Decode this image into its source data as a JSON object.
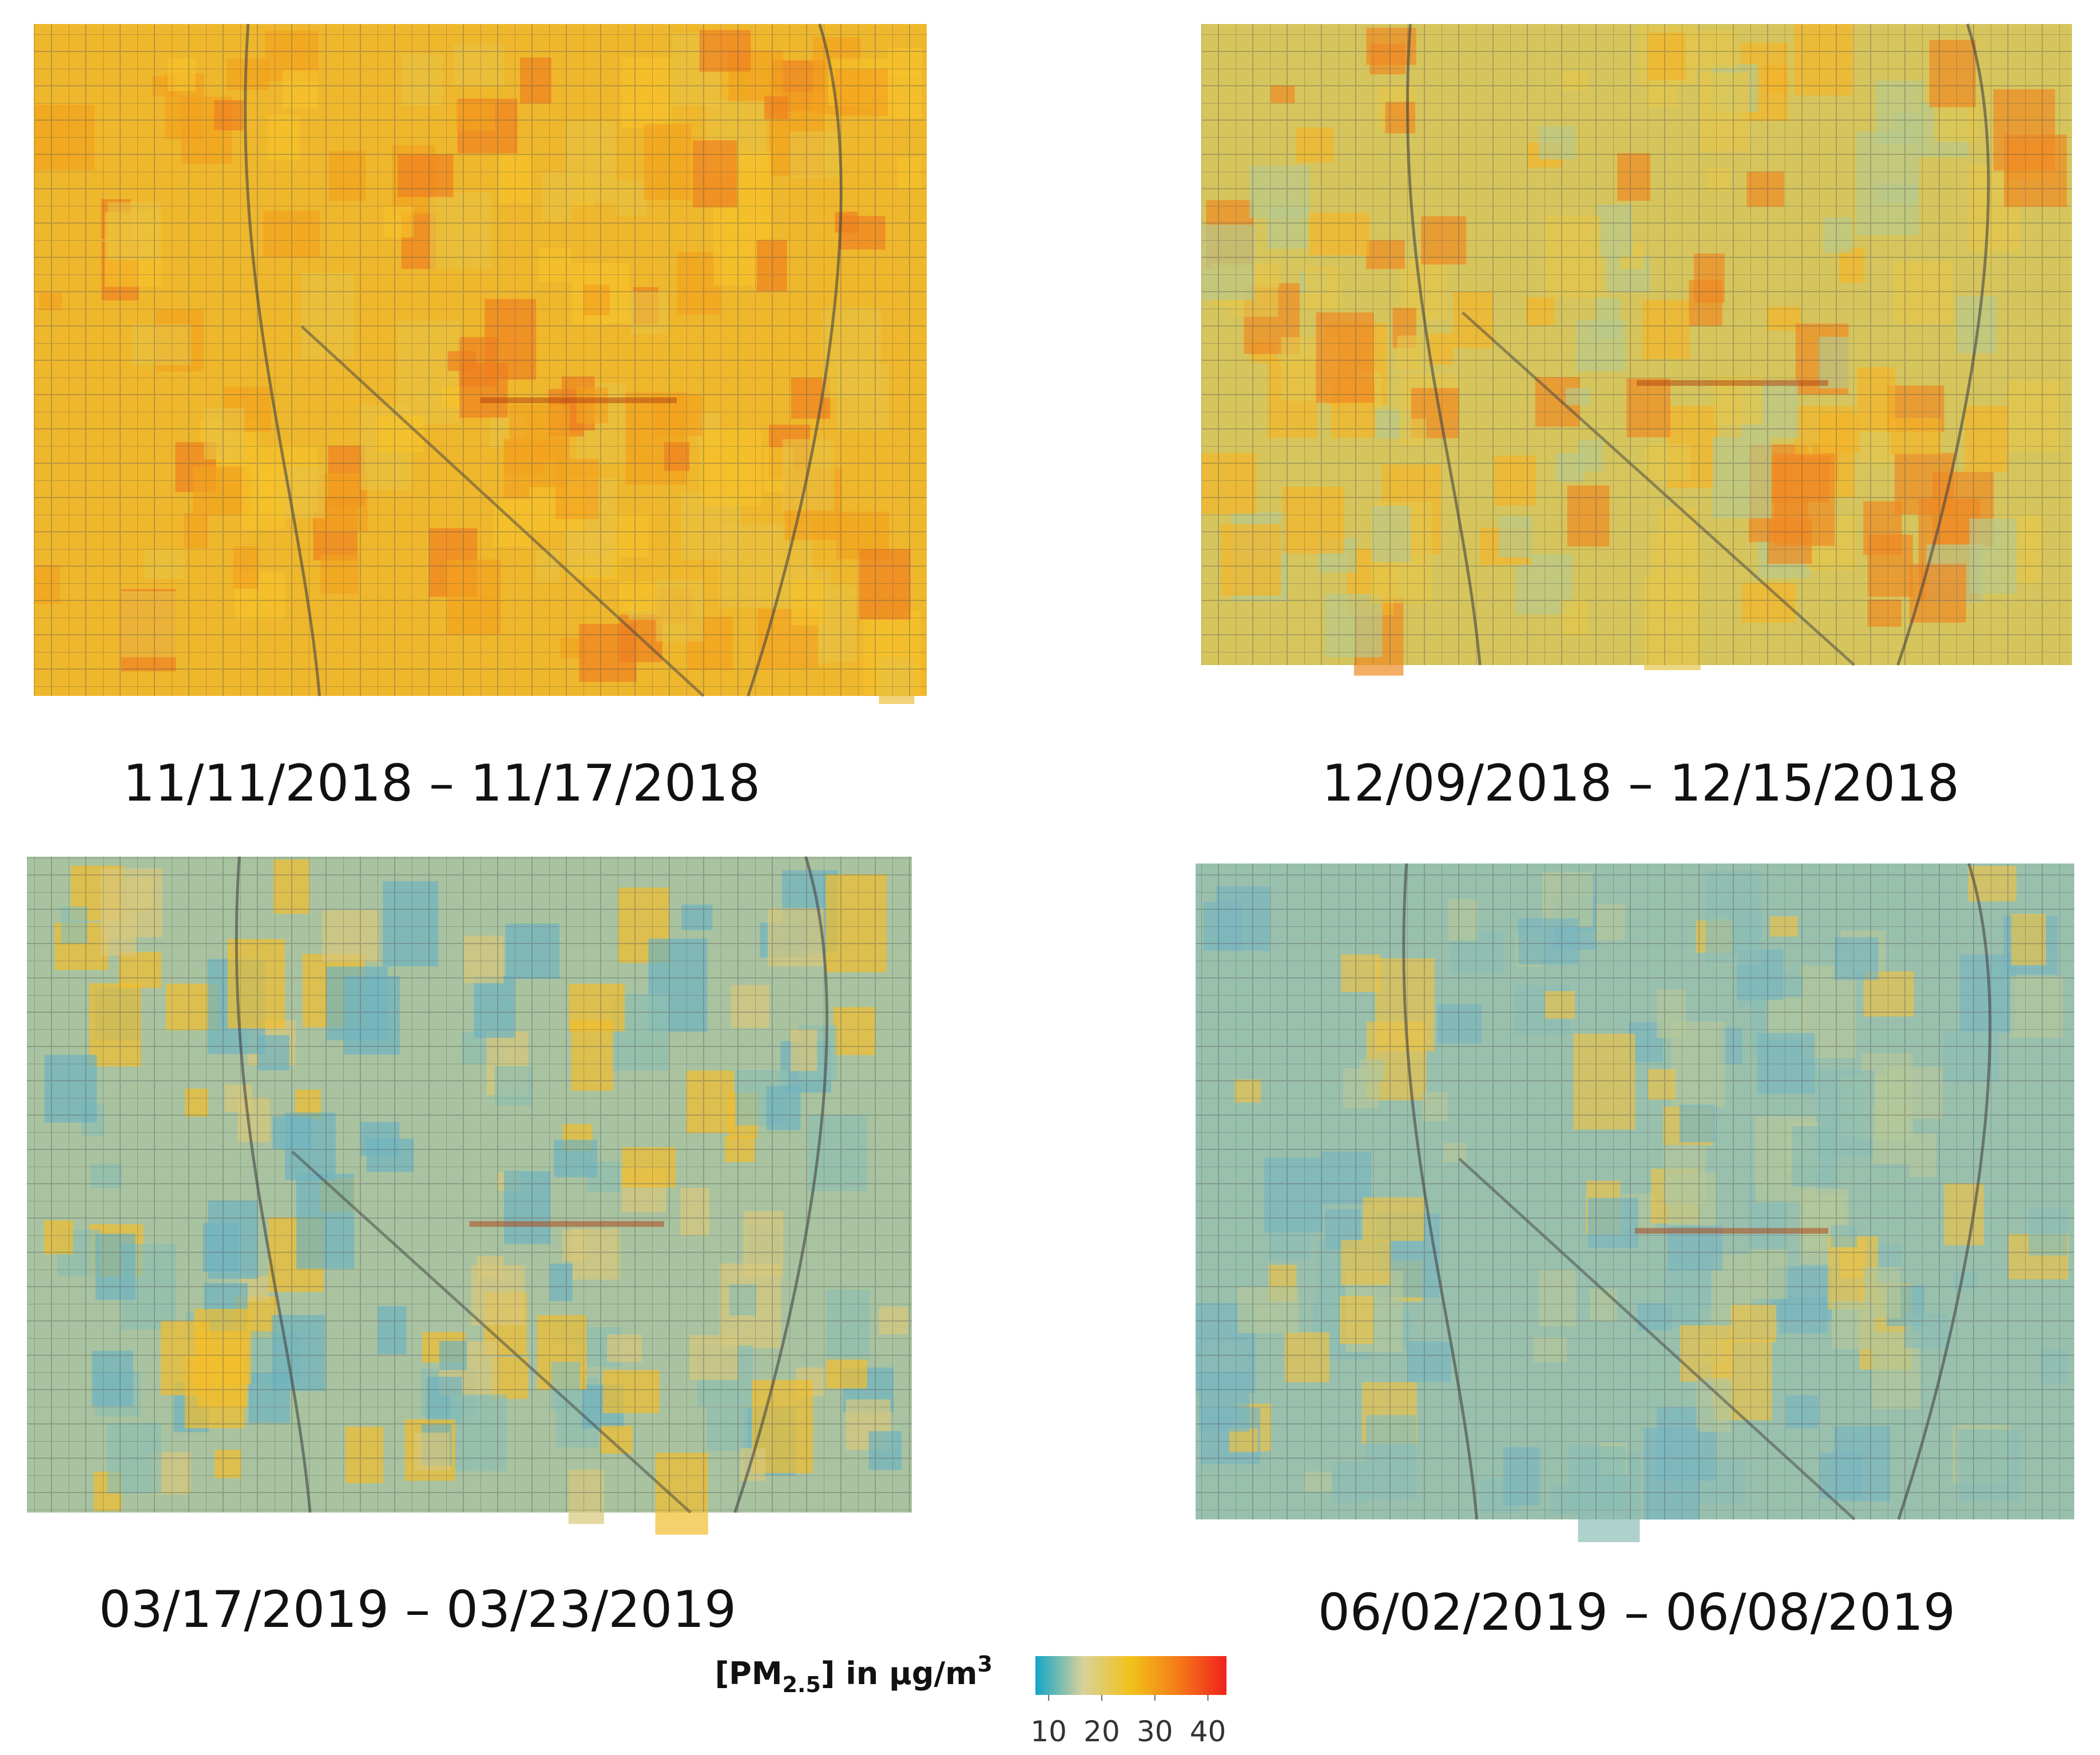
{
  "panels": [
    {
      "caption": "11/11/2018 – 11/17/2018"
    },
    {
      "caption": "12/09/2018 – 12/15/2018"
    },
    {
      "caption": "03/17/2019 – 03/23/2019"
    },
    {
      "caption": "06/02/2019 – 06/08/2019"
    }
  ],
  "legend": {
    "title": {
      "prefix": "[PM",
      "subscript": "2.5",
      "suffix": "] in µg/m",
      "superscript": "3"
    },
    "lim": [
      7.5,
      43.5
    ],
    "ticks": [
      10,
      20,
      30,
      40
    ],
    "colors": [
      "#14a5c8",
      "#d8d29a",
      "#f2c21a",
      "#f57a18",
      "#f0221c"
    ]
  }
}
